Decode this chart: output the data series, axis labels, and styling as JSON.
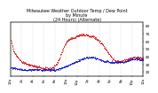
{
  "title": "Milwaukee Weather Outdoor Temp / Dew Point\nby Minute\n(24 Hours) (Alternate)",
  "title_fontsize": 3.5,
  "background_color": "#ffffff",
  "plot_bg_color": "#ffffff",
  "grid_color": "#bbbbbb",
  "temp_color": "#cc0000",
  "dew_color": "#0000cc",
  "ylim": [
    15,
    85
  ],
  "xlim": [
    0,
    1440
  ],
  "ytick_vals": [
    20,
    30,
    40,
    50,
    60,
    70,
    80
  ],
  "ytick_fontsize": 3.0,
  "xtick_fontsize": 2.8,
  "num_points": 1440,
  "dot_size_temp": 0.3,
  "dot_size_dew": 0.3,
  "temp_values": [
    62,
    60,
    57,
    54,
    51,
    49,
    47,
    45,
    44,
    43,
    42,
    41,
    40,
    39,
    38,
    37,
    36,
    36,
    35,
    34,
    34,
    33,
    33,
    32,
    32,
    32,
    31,
    31,
    31,
    30,
    30,
    30,
    30,
    30,
    30,
    29,
    29,
    29,
    29,
    28,
    28,
    28,
    28,
    28,
    28,
    27,
    27,
    27,
    27,
    27,
    27,
    27,
    26,
    26,
    26,
    26,
    25,
    25,
    25,
    25,
    25,
    25,
    25,
    25,
    25,
    25,
    25,
    25,
    25,
    25,
    25,
    25,
    25,
    26,
    26,
    26,
    26,
    27,
    27,
    28,
    28,
    29,
    30,
    31,
    32,
    34,
    35,
    37,
    38,
    40,
    42,
    44,
    46,
    47,
    49,
    51,
    53,
    54,
    56,
    57,
    58,
    59,
    60,
    61,
    62,
    62,
    63,
    63,
    63,
    64,
    64,
    64,
    65,
    65,
    65,
    65,
    66,
    66,
    66,
    67,
    67,
    67,
    67,
    68,
    68,
    68,
    68,
    68,
    68,
    68,
    69,
    69,
    69,
    68,
    68,
    68,
    68,
    68,
    68,
    68,
    68,
    67,
    67,
    67,
    67,
    67,
    66,
    66,
    66,
    66,
    65,
    65,
    65,
    64,
    64,
    63,
    63,
    62,
    62,
    61,
    60,
    60,
    59,
    58,
    57,
    56,
    55,
    54,
    53,
    52,
    51,
    50,
    49,
    48,
    47,
    46,
    45,
    44,
    43,
    42,
    41,
    40,
    39,
    38,
    37,
    37,
    36,
    36,
    35,
    35,
    35,
    34,
    34,
    34,
    34,
    34,
    34,
    34,
    34,
    34,
    34,
    34,
    35,
    35,
    35,
    35,
    35,
    36,
    36,
    36,
    36,
    37,
    37,
    37,
    37,
    38,
    38,
    38,
    38,
    38,
    39,
    39,
    39,
    39,
    39,
    39,
    39,
    39,
    39,
    39,
    39,
    39,
    38,
    38,
    38,
    38,
    38,
    38,
    38,
    38
  ],
  "dew_values": [
    26,
    26,
    26,
    25,
    25,
    25,
    25,
    25,
    25,
    24,
    24,
    24,
    24,
    24,
    24,
    24,
    24,
    24,
    24,
    24,
    23,
    23,
    23,
    23,
    23,
    23,
    23,
    23,
    23,
    23,
    23,
    23,
    23,
    23,
    23,
    23,
    23,
    23,
    23,
    23,
    23,
    23,
    23,
    23,
    23,
    23,
    23,
    23,
    23,
    23,
    23,
    23,
    23,
    23,
    23,
    23,
    23,
    23,
    23,
    23,
    23,
    23,
    23,
    23,
    23,
    23,
    23,
    23,
    23,
    23,
    23,
    23,
    23,
    23,
    23,
    23,
    23,
    23,
    23,
    23,
    23,
    23,
    23,
    24,
    24,
    24,
    24,
    25,
    25,
    25,
    25,
    25,
    26,
    26,
    26,
    27,
    27,
    27,
    27,
    28,
    28,
    28,
    28,
    29,
    29,
    29,
    30,
    30,
    30,
    31,
    31,
    31,
    32,
    32,
    32,
    32,
    33,
    33,
    33,
    34,
    34,
    34,
    35,
    35,
    35,
    36,
    36,
    36,
    37,
    37,
    37,
    37,
    38,
    38,
    38,
    38,
    39,
    39,
    39,
    39,
    39,
    39,
    39,
    39,
    39,
    39,
    39,
    39,
    39,
    39,
    39,
    39,
    39,
    39,
    38,
    38,
    38,
    38,
    37,
    37,
    37,
    37,
    36,
    36,
    35,
    35,
    35,
    35,
    34,
    34,
    34,
    34,
    34,
    34,
    34,
    34,
    34,
    34,
    33,
    33,
    33,
    33,
    33,
    33,
    33,
    33,
    33,
    33,
    33,
    33,
    33,
    33,
    33,
    33,
    33,
    33,
    33,
    33,
    33,
    33,
    33,
    33,
    33,
    33,
    33,
    33,
    33,
    34,
    34,
    34,
    34,
    35,
    35,
    35,
    35,
    36,
    36,
    36,
    36,
    37,
    37,
    37,
    37,
    37,
    37,
    37,
    37,
    37,
    37,
    37,
    37,
    37,
    36,
    36,
    36,
    36,
    36,
    36,
    36,
    36
  ]
}
